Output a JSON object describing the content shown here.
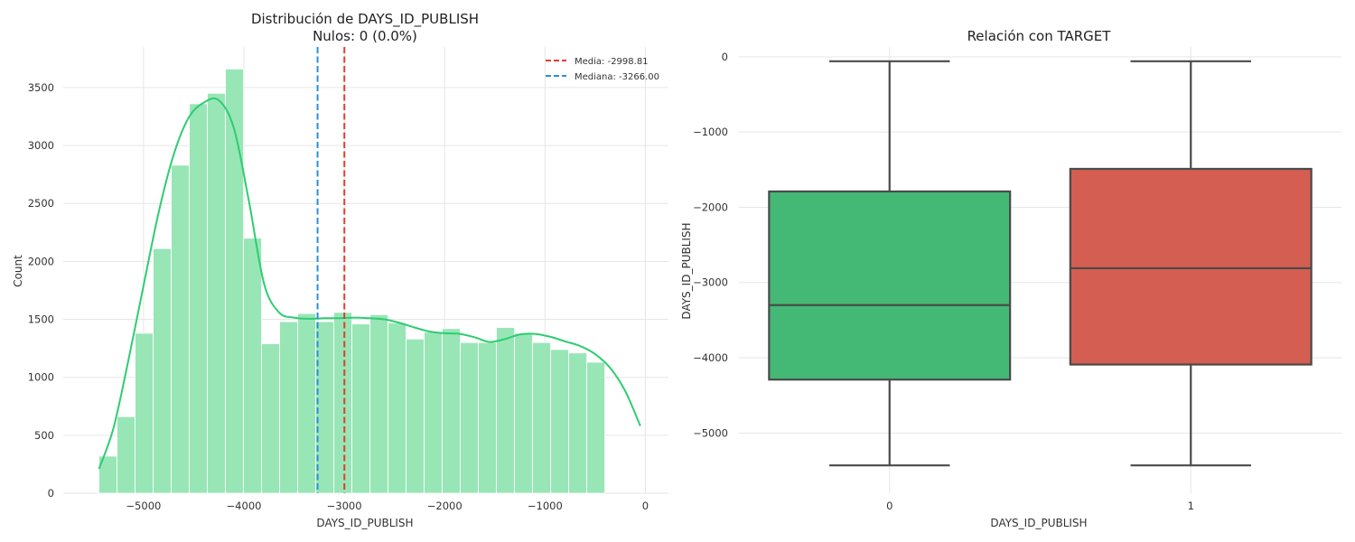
{
  "chart_data": [
    {
      "type": "histogram",
      "title": "Distribución de DAYS_ID_PUBLISH",
      "subtitle": "Nulos: 0 (0.0%)",
      "xlabel": "DAYS_ID_PUBLISH",
      "ylabel": "Count",
      "xlim": [
        -5800,
        230
      ],
      "ylim": [
        0,
        3850
      ],
      "xticks": [
        -5000,
        -4000,
        -3000,
        -2000,
        -1000,
        0
      ],
      "yticks": [
        0,
        500,
        1000,
        1500,
        2000,
        2500,
        3000,
        3500
      ],
      "grid": true,
      "bin_start": -5444,
      "bin_width": 180,
      "counts": [
        320,
        660,
        1380,
        2110,
        2830,
        3360,
        3450,
        3660,
        2200,
        1290,
        1480,
        1550,
        1480,
        1560,
        1460,
        1540,
        1470,
        1330,
        1390,
        1420,
        1300,
        1300,
        1430,
        1380,
        1300,
        1240,
        1210,
        1130
      ],
      "bar_color": "#98e6b6",
      "kde": {
        "color": "#2ecc71",
        "x": [
          -5444,
          -5300,
          -5150,
          -5000,
          -4850,
          -4700,
          -4550,
          -4400,
          -4250,
          -4100,
          -3950,
          -3800,
          -3650,
          -3500,
          -3350,
          -3200,
          -3050,
          -2900,
          -2750,
          -2600,
          -2450,
          -2300,
          -2150,
          -2000,
          -1850,
          -1700,
          -1550,
          -1400,
          -1250,
          -1100,
          -950,
          -800,
          -650,
          -500,
          -350,
          -200,
          -50
        ],
        "y": [
          210,
          560,
          1150,
          1790,
          2420,
          2920,
          3240,
          3370,
          3390,
          3150,
          2520,
          1810,
          1560,
          1515,
          1505,
          1510,
          1510,
          1515,
          1510,
          1500,
          1470,
          1430,
          1395,
          1380,
          1375,
          1345,
          1305,
          1330,
          1370,
          1375,
          1350,
          1310,
          1270,
          1200,
          1080,
          880,
          580
        ]
      },
      "lines": [
        {
          "label": "Media: -2998.81",
          "value": -2998.81,
          "color": "#e03c31"
        },
        {
          "label": "Mediana: -3266.00",
          "value": -3266.0,
          "color": "#2b8fd6"
        }
      ],
      "legend_position": "top-right"
    },
    {
      "type": "box",
      "title": "Relación con TARGET",
      "xlabel": "DAYS_ID_PUBLISH",
      "ylabel": "DAYS_ID_PUBLISH",
      "ylim": [
        -5800,
        130
      ],
      "yticks": [
        0,
        -1000,
        -2000,
        -3000,
        -4000,
        -5000
      ],
      "grid": true,
      "categories": [
        "0",
        "1"
      ],
      "boxes": [
        {
          "category": "0",
          "whisker_low": -5430,
          "q1": -4290,
          "median": -3300,
          "q3": -1790,
          "whisker_high": -60,
          "color": "#44b976"
        },
        {
          "category": "1",
          "whisker_low": -5430,
          "q1": -4090,
          "median": -2810,
          "q3": -1490,
          "whisker_high": -60,
          "color": "#d35e51"
        }
      ]
    }
  ]
}
